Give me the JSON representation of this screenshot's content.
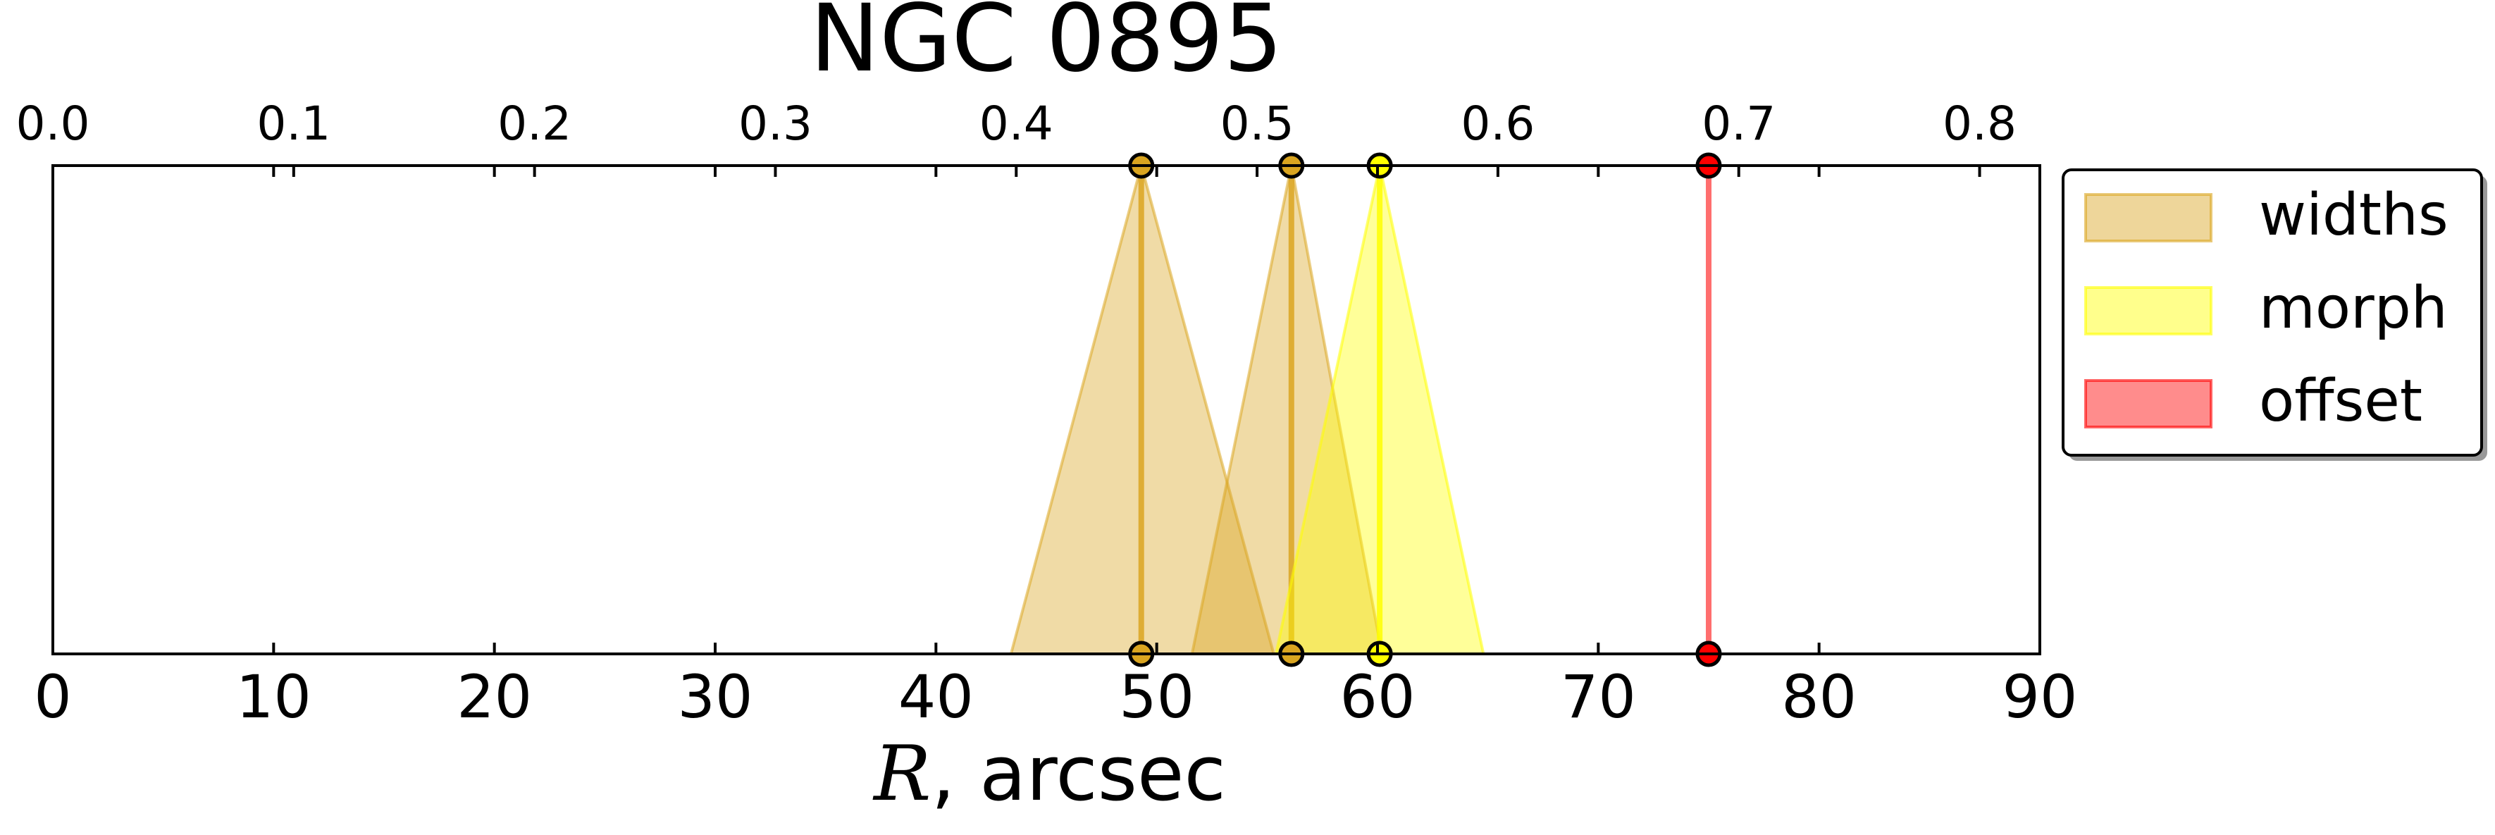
{
  "chart_data": {
    "type": "area",
    "title": "NGC 0895",
    "xlabel_italic": "R",
    "xlabel_rest": ", arcsec",
    "xlim": [
      0,
      90
    ],
    "xticks": [
      "0",
      "10",
      "20",
      "30",
      "40",
      "50",
      "60",
      "70",
      "80",
      "90"
    ],
    "top_xlim": [
      0.0,
      0.825
    ],
    "top_xticks": [
      "0.0",
      "0.1",
      "0.2",
      "0.3",
      "0.4",
      "0.5",
      "0.6",
      "0.7",
      "0.8"
    ],
    "legend_position": "outside-right",
    "legend": [
      {
        "label": "widths",
        "color": "#daa520"
      },
      {
        "label": "morph",
        "color": "#ffff00"
      },
      {
        "label": "offset",
        "color": "#ff0000"
      }
    ],
    "series": [
      {
        "name": "widths",
        "center": 49.3,
        "left": 43.4,
        "right": 55.3,
        "color": "#daa520",
        "line_color": "#daa520",
        "marker_color": "#daa520"
      },
      {
        "name": "widths",
        "center": 56.1,
        "left": 51.6,
        "right": 60.2,
        "color": "#daa520",
        "line_color": "#daa520",
        "marker_color": "#daa520"
      },
      {
        "name": "morph",
        "center": 60.1,
        "left": 55.4,
        "right": 64.8,
        "color": "#ffff00",
        "line_color": "#ffff00",
        "marker_color": "#ffff00"
      },
      {
        "name": "offset",
        "center": 75.0,
        "left": 75.0,
        "right": 75.0,
        "color": "#ff0000",
        "line_color": "#ff5555",
        "marker_color": "#ff0000"
      }
    ]
  }
}
